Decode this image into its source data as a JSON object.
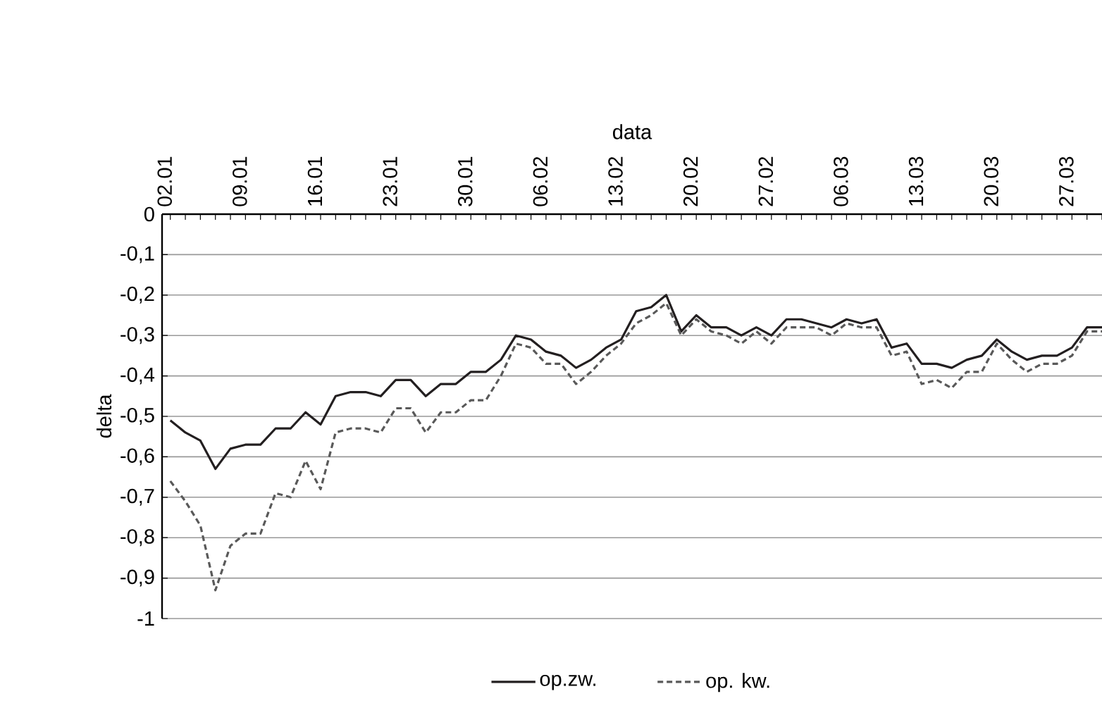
{
  "chart_data": {
    "type": "line",
    "xlabel": "data",
    "ylabel": "delta",
    "categories": [
      "02.01",
      null,
      null,
      null,
      null,
      "09.01",
      null,
      null,
      null,
      null,
      "16.01",
      null,
      null,
      null,
      null,
      "23.01",
      null,
      null,
      null,
      null,
      "30.01",
      null,
      null,
      null,
      null,
      "06.02",
      null,
      null,
      null,
      null,
      "13.02",
      null,
      null,
      null,
      null,
      "20.02",
      null,
      null,
      null,
      null,
      "27.02",
      null,
      null,
      null,
      null,
      "06.03",
      null,
      null,
      null,
      null,
      "13.03",
      null,
      null,
      null,
      null,
      "20.03",
      null,
      null,
      null,
      null,
      "27.03",
      null,
      null
    ],
    "ylim": [
      -1,
      0
    ],
    "yticks": [
      {
        "value": 0,
        "label": "0"
      },
      {
        "value": -0.1,
        "label": "-0,1"
      },
      {
        "value": -0.2,
        "label": "-0,2"
      },
      {
        "value": -0.3,
        "label": "-0,3"
      },
      {
        "value": -0.4,
        "label": "-0,4"
      },
      {
        "value": -0.5,
        "label": "-0,5"
      },
      {
        "value": -0.6,
        "label": "-0,6"
      },
      {
        "value": -0.7,
        "label": "-0,7"
      },
      {
        "value": -0.8,
        "label": "-0,8"
      },
      {
        "value": -0.9,
        "label": "-0,9"
      },
      {
        "value": -1,
        "label": "-1"
      }
    ],
    "grid": "y",
    "legend": "bottom",
    "series": [
      {
        "name": "op.zw.",
        "color": "#231f20",
        "line_style": "solid",
        "values": [
          -0.51,
          -0.54,
          -0.56,
          -0.63,
          -0.58,
          -0.57,
          -0.57,
          -0.53,
          -0.53,
          -0.49,
          -0.52,
          -0.45,
          -0.44,
          -0.44,
          -0.45,
          -0.41,
          -0.41,
          -0.45,
          -0.42,
          -0.42,
          -0.39,
          -0.39,
          -0.36,
          -0.3,
          -0.31,
          -0.34,
          -0.35,
          -0.38,
          -0.36,
          -0.33,
          -0.31,
          -0.24,
          -0.23,
          -0.2,
          -0.29,
          -0.25,
          -0.28,
          -0.28,
          -0.3,
          -0.28,
          -0.3,
          -0.26,
          -0.26,
          -0.27,
          -0.28,
          -0.26,
          -0.27,
          -0.26,
          -0.33,
          -0.32,
          -0.37,
          -0.37,
          -0.38,
          -0.36,
          -0.35,
          -0.31,
          -0.34,
          -0.36,
          -0.35,
          -0.35,
          -0.33,
          -0.28,
          -0.28
        ]
      },
      {
        "name": "op. kw.",
        "color": "#595959",
        "line_style": "dashed",
        "values": [
          -0.66,
          -0.71,
          -0.77,
          -0.93,
          -0.82,
          -0.79,
          -0.79,
          -0.69,
          -0.7,
          -0.61,
          -0.68,
          -0.54,
          -0.53,
          -0.53,
          -0.54,
          -0.48,
          -0.48,
          -0.54,
          -0.49,
          -0.49,
          -0.46,
          -0.46,
          -0.4,
          -0.32,
          -0.33,
          -0.37,
          -0.37,
          -0.42,
          -0.39,
          -0.35,
          -0.32,
          -0.27,
          -0.25,
          -0.22,
          -0.3,
          -0.26,
          -0.29,
          -0.3,
          -0.32,
          -0.29,
          -0.32,
          -0.28,
          -0.28,
          -0.28,
          -0.3,
          -0.27,
          -0.28,
          -0.28,
          -0.35,
          -0.34,
          -0.42,
          -0.41,
          -0.43,
          -0.39,
          -0.39,
          -0.32,
          -0.36,
          -0.39,
          -0.37,
          -0.37,
          -0.35,
          -0.29,
          -0.29
        ]
      }
    ]
  }
}
